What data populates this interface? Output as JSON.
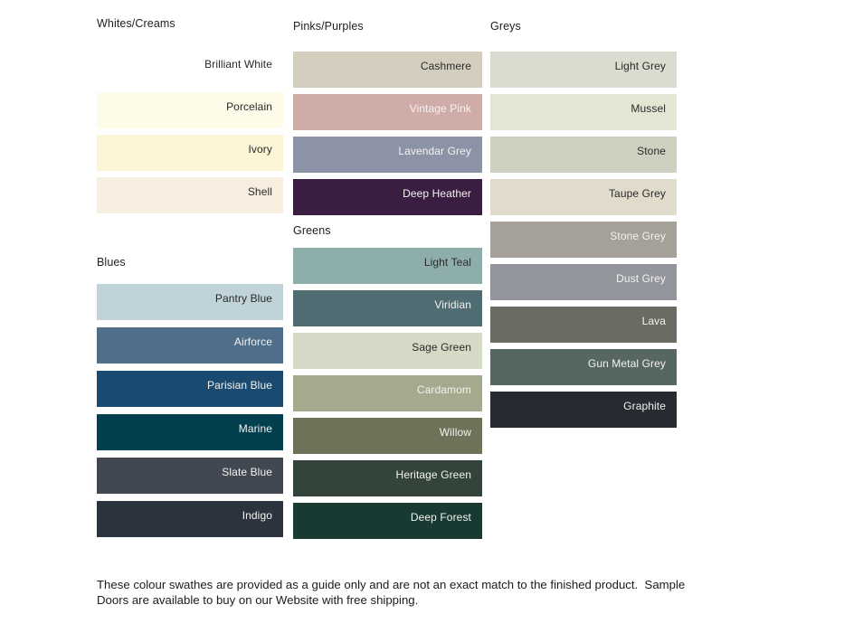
{
  "note": "These colour swathes are provided as a guide only and are not an exact match to the finished product.  Sample Doors are available to buy on our Website with free shipping.",
  "text_colors": {
    "dark": "#2a2a2a",
    "light": "#f3f2ef"
  },
  "palette_columns": [
    {
      "groups": [
        {
          "title": "Whites/Creams",
          "swatches": [
            {
              "label": "Brilliant White",
              "color": "#ffffff",
              "text": "dark"
            },
            {
              "label": "Porcelain",
              "color": "#fefbe8",
              "text": "dark"
            },
            {
              "label": "Ivory",
              "color": "#fbf5d6",
              "text": "dark"
            },
            {
              "label": "Shell",
              "color": "#f7eedf",
              "text": "dark"
            }
          ]
        },
        {
          "title": "Blues",
          "swatches": [
            {
              "label": "Pantry Blue",
              "color": "#bfd3d9",
              "text": "dark"
            },
            {
              "label": "Airforce",
              "color": "#4e6e8a",
              "text": "light"
            },
            {
              "label": "Parisian Blue",
              "color": "#1b4a70",
              "text": "light"
            },
            {
              "label": "Marine",
              "color": "#02404f",
              "text": "light"
            },
            {
              "label": "Slate Blue",
              "color": "#424852",
              "text": "light"
            },
            {
              "label": "Indigo",
              "color": "#2b333e",
              "text": "light"
            }
          ]
        }
      ]
    },
    {
      "groups": [
        {
          "title": "Pinks/Purples",
          "swatches": [
            {
              "label": "Cashmere",
              "color": "#d2cdbd",
              "text": "dark"
            },
            {
              "label": "Vintage Pink",
              "color": "#d0aca8",
              "text": "light"
            },
            {
              "label": "Lavendar Grey",
              "color": "#8d93a6",
              "text": "light"
            },
            {
              "label": "Deep Heather",
              "color": "#3a1e42",
              "text": "light"
            }
          ]
        },
        {
          "title": "Greens",
          "swatches": [
            {
              "label": "Light Teal",
              "color": "#8eaeab",
              "text": "dark"
            },
            {
              "label": "Viridian",
              "color": "#4e6c72",
              "text": "light"
            },
            {
              "label": "Sage Green",
              "color": "#d4dac5",
              "text": "dark"
            },
            {
              "label": "Cardamom",
              "color": "#a4aa8d",
              "text": "light"
            },
            {
              "label": "Willow",
              "color": "#6f7159",
              "text": "light"
            },
            {
              "label": "Heritage Green",
              "color": "#33443a",
              "text": "light"
            },
            {
              "label": "Deep Forest",
              "color": "#193a32",
              "text": "light"
            }
          ]
        }
      ]
    },
    {
      "groups": [
        {
          "title": "Greys",
          "swatches": [
            {
              "label": "Light Grey",
              "color": "#dbdcd0",
              "text": "dark"
            },
            {
              "label": "Mussel",
              "color": "#e4e6d4",
              "text": "dark"
            },
            {
              "label": "Stone",
              "color": "#cdd2c0",
              "text": "dark"
            },
            {
              "label": "Taupe Grey",
              "color": "#e1dbcc",
              "text": "dark"
            },
            {
              "label": "Stone Grey",
              "color": "#a5a198",
              "text": "light"
            },
            {
              "label": "Dust Grey",
              "color": "#93959d",
              "text": "light"
            },
            {
              "label": "Lava",
              "color": "#6b6b63",
              "text": "light"
            },
            {
              "label": "Gun Metal Grey",
              "color": "#566762",
              "text": "light"
            },
            {
              "label": "Graphite",
              "color": "#262b31",
              "text": "light"
            }
          ]
        }
      ]
    }
  ]
}
